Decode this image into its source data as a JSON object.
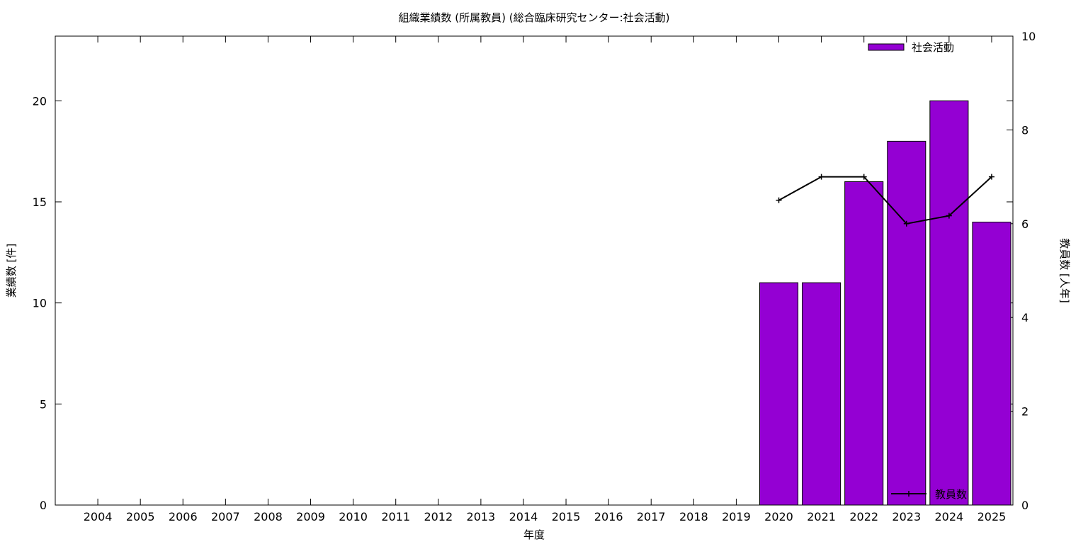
{
  "chart_data": {
    "type": "bar",
    "title": "組織業績数 (所属教員) (総合臨床研究センター:社会活動)",
    "xlabel": "年度",
    "ylabel": "業績数 [件]",
    "y2label": "教員数 [人年]",
    "categories": [
      "2004",
      "2005",
      "2006",
      "2007",
      "2008",
      "2009",
      "2010",
      "2011",
      "2012",
      "2013",
      "2014",
      "2015",
      "2016",
      "2017",
      "2018",
      "2019",
      "2020",
      "2021",
      "2022",
      "2023",
      "2024",
      "2025"
    ],
    "series": [
      {
        "name": "社会活動",
        "type": "bar",
        "axis": "left",
        "color": "#9400d3",
        "values": [
          0,
          0,
          0,
          0,
          0,
          0,
          0,
          0,
          0,
          0,
          0,
          0,
          0,
          0,
          0,
          0,
          11,
          11,
          16,
          18,
          20,
          14
        ]
      },
      {
        "name": "教員数",
        "type": "line",
        "axis": "right",
        "color": "#000000",
        "values": [
          null,
          null,
          null,
          null,
          null,
          null,
          null,
          null,
          null,
          null,
          null,
          null,
          null,
          null,
          null,
          null,
          6.5,
          7,
          7,
          6,
          6.17,
          7
        ]
      }
    ],
    "ylim": [
      0,
      23.2
    ],
    "yticks": [
      "0",
      "5",
      "10",
      "15",
      "20"
    ],
    "y2lim": [
      0,
      10
    ],
    "y2ticks": [
      "0",
      "2",
      "4",
      "6",
      "8",
      "10"
    ],
    "legend_placement": [
      "top-right",
      "bottom-right"
    ],
    "grid": false
  }
}
